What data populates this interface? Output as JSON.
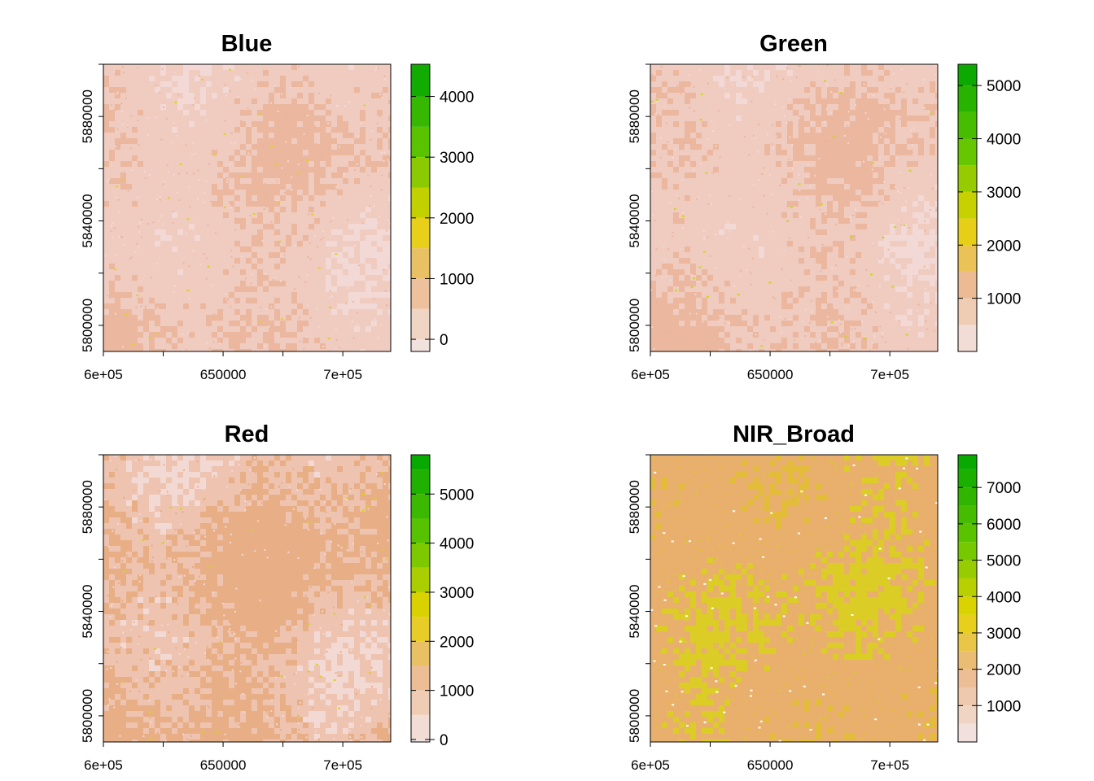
{
  "chart_data": [
    {
      "type": "heatmap",
      "title": "Blue",
      "x_ticks": [
        {
          "value": 600000,
          "label": "6e+05"
        },
        {
          "value": 650000,
          "label": "650000"
        },
        {
          "value": 700000,
          "label": "7e+05"
        }
      ],
      "y_ticks": [
        {
          "value": 5800000,
          "label": "5800000"
        },
        {
          "value": 5840000,
          "label": "5840000"
        },
        {
          "value": 5880000,
          "label": "5880000"
        }
      ],
      "xlim": [
        600000,
        720000
      ],
      "ylim": [
        5790000,
        5900000
      ],
      "legend": {
        "range": [
          -200,
          4530
        ],
        "breaks": [
          -200,
          0,
          500,
          1000,
          1500,
          2000,
          2500,
          3000,
          3500,
          4000,
          4530
        ],
        "ticks": [
          {
            "value": 0,
            "label": "0"
          },
          {
            "value": 1000,
            "label": "1000"
          },
          {
            "value": 2000,
            "label": "2000"
          },
          {
            "value": 3000,
            "label": "3000"
          },
          {
            "value": 4000,
            "label": "4000"
          }
        ]
      },
      "raster": {
        "base_color": "#f0cbc0",
        "light_color": "#f3dcd8",
        "dark_color": "#eab498",
        "accent_color": "#e0d21a",
        "light_share": 0.35,
        "dark_share": 0.14,
        "accent_share": 0.003,
        "seed": 11
      }
    },
    {
      "type": "heatmap",
      "title": "Green",
      "x_ticks": [
        {
          "value": 600000,
          "label": "6e+05"
        },
        {
          "value": 650000,
          "label": "650000"
        },
        {
          "value": 700000,
          "label": "7e+05"
        }
      ],
      "y_ticks": [
        {
          "value": 5800000,
          "label": "5800000"
        },
        {
          "value": 5840000,
          "label": "5840000"
        },
        {
          "value": 5880000,
          "label": "5880000"
        }
      ],
      "xlim": [
        600000,
        720000
      ],
      "ylim": [
        5790000,
        5900000
      ],
      "legend": {
        "range": [
          0,
          5400
        ],
        "breaks": [
          0,
          500,
          1000,
          1500,
          2000,
          2500,
          3000,
          3500,
          4000,
          4500,
          5000,
          5400
        ],
        "ticks": [
          {
            "value": 1000,
            "label": "1000"
          },
          {
            "value": 2000,
            "label": "2000"
          },
          {
            "value": 3000,
            "label": "3000"
          },
          {
            "value": 4000,
            "label": "4000"
          },
          {
            "value": 5000,
            "label": "5000"
          }
        ]
      },
      "raster": {
        "base_color": "#f0cbc0",
        "light_color": "#f3dcd8",
        "dark_color": "#eab498",
        "accent_color": "#c8d81a",
        "light_share": 0.35,
        "dark_share": 0.14,
        "accent_share": 0.003,
        "seed": 23
      }
    },
    {
      "type": "heatmap",
      "title": "Red",
      "x_ticks": [
        {
          "value": 600000,
          "label": "6e+05"
        },
        {
          "value": 650000,
          "label": "650000"
        },
        {
          "value": 700000,
          "label": "7e+05"
        }
      ],
      "y_ticks": [
        {
          "value": 5800000,
          "label": "5800000"
        },
        {
          "value": 5840000,
          "label": "5840000"
        },
        {
          "value": 5880000,
          "label": "5880000"
        }
      ],
      "xlim": [
        600000,
        720000
      ],
      "ylim": [
        5790000,
        5900000
      ],
      "legend": {
        "range": [
          -50,
          5800
        ],
        "breaks": [
          -50,
          0,
          500,
          1000,
          1500,
          2000,
          2500,
          3000,
          3500,
          4000,
          4500,
          5000,
          5500,
          5800
        ],
        "ticks": [
          {
            "value": 0,
            "label": "0"
          },
          {
            "value": 1000,
            "label": "1000"
          },
          {
            "value": 2000,
            "label": "2000"
          },
          {
            "value": 3000,
            "label": "3000"
          },
          {
            "value": 4000,
            "label": "4000"
          },
          {
            "value": 5000,
            "label": "5000"
          }
        ]
      },
      "raster": {
        "base_color": "#eec3b0",
        "light_color": "#f3dddb",
        "dark_color": "#e6ac80",
        "accent_color": "#d8d020",
        "light_share": 0.36,
        "dark_share": 0.26,
        "accent_share": 0.003,
        "seed": 37
      }
    },
    {
      "type": "heatmap",
      "title": "NIR_Broad",
      "x_ticks": [
        {
          "value": 600000,
          "label": "6e+05"
        },
        {
          "value": 650000,
          "label": "650000"
        },
        {
          "value": 700000,
          "label": "7e+05"
        }
      ],
      "y_ticks": [
        {
          "value": 5800000,
          "label": "5800000"
        },
        {
          "value": 5840000,
          "label": "5840000"
        },
        {
          "value": 5880000,
          "label": "5880000"
        }
      ],
      "xlim": [
        600000,
        720000
      ],
      "ylim": [
        5790000,
        5900000
      ],
      "legend": {
        "range": [
          0,
          7900
        ],
        "breaks": [
          0,
          500,
          1000,
          1500,
          2000,
          2500,
          3000,
          3500,
          4000,
          4500,
          5000,
          5500,
          6000,
          6500,
          7000,
          7500,
          7900
        ],
        "ticks": [
          {
            "value": 1000,
            "label": "1000"
          },
          {
            "value": 2000,
            "label": "2000"
          },
          {
            "value": 3000,
            "label": "3000"
          },
          {
            "value": 4000,
            "label": "4000"
          },
          {
            "value": 5000,
            "label": "5000"
          },
          {
            "value": 6000,
            "label": "6000"
          },
          {
            "value": 7000,
            "label": "7000"
          }
        ]
      },
      "raster": {
        "base_color": "#e8b06c",
        "light_color": "#e2c030",
        "dark_color": "#d8d21a",
        "accent_color": "#ffffff",
        "light_share": 0.3,
        "dark_share": 0.12,
        "accent_share": 0.006,
        "seed": 53
      }
    }
  ]
}
